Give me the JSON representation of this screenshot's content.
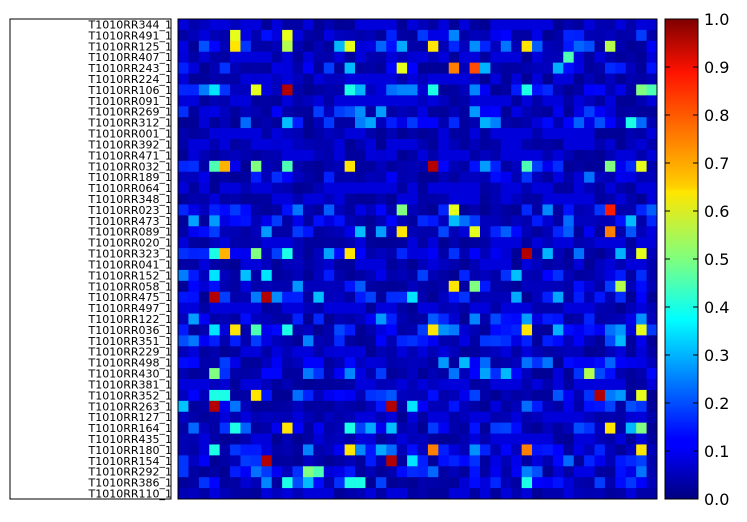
{
  "chart_data": {
    "type": "heatmap",
    "title": "",
    "xlabel": "",
    "ylabel": "",
    "colormap": "jet",
    "vmin": 0.0,
    "vmax": 1.0,
    "colorbar_ticks": [
      "0.0",
      "0.1",
      "0.2",
      "0.3",
      "0.4",
      "0.5",
      "0.6",
      "0.7",
      "0.8",
      "0.9",
      "1.0"
    ],
    "n_columns": 46,
    "rows": [
      "T1010RR344_1",
      "T1010RR491_1",
      "T1010RR125_1",
      "T1010RR407_1",
      "T1010RR243_1",
      "T1010RR224_1",
      "T1010RR106_1",
      "T1010RR091_1",
      "T1010RR269_1",
      "T1010RR312_1",
      "T1010RR001_1",
      "T1010RR392_1",
      "T1010RR471_1",
      "T1010RR032_1",
      "T1010RR189_1",
      "T1010RR064_1",
      "T1010RR348_1",
      "T1010RR023_1",
      "T1010RR473_1",
      "T1010RR089_1",
      "T1010RR020_1",
      "T1010RR323_1",
      "T1010RR041_1",
      "T1010RR152_1",
      "T1010RR058_1",
      "T1010RR475_1",
      "T1010RR497_1",
      "T1010RR122_1",
      "T1010RR036_1",
      "T1010RR351_1",
      "T1010RR229_1",
      "T1010RR498_1",
      "T1010RR430_1",
      "T1010RR381_1",
      "T1010RR352_1",
      "T1010RR263_1",
      "T1010RR127_1",
      "T1010RR164_1",
      "T1010RR435_1",
      "T1010RR180_1",
      "T1010RR154_1",
      "T1010RR292_1",
      "T1010RR386_1",
      "T1010RR110_1"
    ],
    "highlights": [
      {
        "row": 1,
        "col": 5,
        "value": 0.6
      },
      {
        "row": 1,
        "col": 10,
        "value": 0.6
      },
      {
        "row": 2,
        "col": 5,
        "value": 0.65
      },
      {
        "row": 2,
        "col": 10,
        "value": 0.55
      },
      {
        "row": 2,
        "col": 16,
        "value": 0.6
      },
      {
        "row": 2,
        "col": 24,
        "value": 0.65
      },
      {
        "row": 2,
        "col": 33,
        "value": 0.65
      },
      {
        "row": 2,
        "col": 41,
        "value": 0.55
      },
      {
        "row": 3,
        "col": 37,
        "value": 0.45
      },
      {
        "row": 4,
        "col": 21,
        "value": 0.6
      },
      {
        "row": 4,
        "col": 26,
        "value": 0.75
      },
      {
        "row": 4,
        "col": 28,
        "value": 0.8
      },
      {
        "row": 6,
        "col": 3,
        "value": 0.35
      },
      {
        "row": 6,
        "col": 7,
        "value": 0.6
      },
      {
        "row": 6,
        "col": 10,
        "value": 0.95
      },
      {
        "row": 6,
        "col": 16,
        "value": 0.4
      },
      {
        "row": 6,
        "col": 24,
        "value": 0.4
      },
      {
        "row": 6,
        "col": 33,
        "value": 0.4
      },
      {
        "row": 6,
        "col": 44,
        "value": 0.5
      },
      {
        "row": 6,
        "col": 45,
        "value": 0.45
      },
      {
        "row": 9,
        "col": 43,
        "value": 0.4
      },
      {
        "row": 13,
        "col": 3,
        "value": 0.45
      },
      {
        "row": 13,
        "col": 4,
        "value": 0.7
      },
      {
        "row": 13,
        "col": 7,
        "value": 0.5
      },
      {
        "row": 13,
        "col": 10,
        "value": 0.45
      },
      {
        "row": 13,
        "col": 16,
        "value": 0.65
      },
      {
        "row": 13,
        "col": 24,
        "value": 0.95
      },
      {
        "row": 13,
        "col": 33,
        "value": 0.45
      },
      {
        "row": 13,
        "col": 41,
        "value": 0.5
      },
      {
        "row": 13,
        "col": 44,
        "value": 0.6
      },
      {
        "row": 17,
        "col": 21,
        "value": 0.5
      },
      {
        "row": 17,
        "col": 26,
        "value": 0.6
      },
      {
        "row": 17,
        "col": 41,
        "value": 0.85
      },
      {
        "row": 19,
        "col": 21,
        "value": 0.65
      },
      {
        "row": 19,
        "col": 28,
        "value": 0.6
      },
      {
        "row": 19,
        "col": 41,
        "value": 0.75
      },
      {
        "row": 21,
        "col": 3,
        "value": 0.4
      },
      {
        "row": 21,
        "col": 4,
        "value": 0.7
      },
      {
        "row": 21,
        "col": 7,
        "value": 0.5
      },
      {
        "row": 21,
        "col": 10,
        "value": 0.4
      },
      {
        "row": 21,
        "col": 16,
        "value": 0.65
      },
      {
        "row": 21,
        "col": 33,
        "value": 0.95
      },
      {
        "row": 21,
        "col": 44,
        "value": 0.6
      },
      {
        "row": 23,
        "col": 3,
        "value": 0.35
      },
      {
        "row": 23,
        "col": 8,
        "value": 0.35
      },
      {
        "row": 24,
        "col": 26,
        "value": 0.65
      },
      {
        "row": 24,
        "col": 28,
        "value": 0.5
      },
      {
        "row": 24,
        "col": 42,
        "value": 0.55
      },
      {
        "row": 25,
        "col": 3,
        "value": 0.95
      },
      {
        "row": 25,
        "col": 8,
        "value": 0.95
      },
      {
        "row": 25,
        "col": 22,
        "value": 0.35
      },
      {
        "row": 28,
        "col": 3,
        "value": 0.35
      },
      {
        "row": 28,
        "col": 5,
        "value": 0.65
      },
      {
        "row": 28,
        "col": 7,
        "value": 0.45
      },
      {
        "row": 28,
        "col": 10,
        "value": 0.4
      },
      {
        "row": 28,
        "col": 24,
        "value": 0.65
      },
      {
        "row": 28,
        "col": 33,
        "value": 0.65
      },
      {
        "row": 28,
        "col": 44,
        "value": 0.6
      },
      {
        "row": 32,
        "col": 3,
        "value": 0.5
      },
      {
        "row": 32,
        "col": 39,
        "value": 0.55
      },
      {
        "row": 34,
        "col": 3,
        "value": 0.4
      },
      {
        "row": 34,
        "col": 4,
        "value": 0.4
      },
      {
        "row": 34,
        "col": 7,
        "value": 0.65
      },
      {
        "row": 34,
        "col": 40,
        "value": 0.95
      },
      {
        "row": 34,
        "col": 44,
        "value": 0.6
      },
      {
        "row": 35,
        "col": 3,
        "value": 0.95
      },
      {
        "row": 35,
        "col": 20,
        "value": 0.95
      },
      {
        "row": 35,
        "col": 22,
        "value": 0.35
      },
      {
        "row": 37,
        "col": 5,
        "value": 0.4
      },
      {
        "row": 37,
        "col": 10,
        "value": 0.65
      },
      {
        "row": 37,
        "col": 16,
        "value": 0.4
      },
      {
        "row": 37,
        "col": 41,
        "value": 0.65
      },
      {
        "row": 37,
        "col": 44,
        "value": 0.5
      },
      {
        "row": 39,
        "col": 3,
        "value": 0.4
      },
      {
        "row": 39,
        "col": 16,
        "value": 0.65
      },
      {
        "row": 39,
        "col": 24,
        "value": 0.75
      },
      {
        "row": 39,
        "col": 33,
        "value": 0.75
      },
      {
        "row": 39,
        "col": 44,
        "value": 0.65
      },
      {
        "row": 40,
        "col": 8,
        "value": 0.95
      },
      {
        "row": 40,
        "col": 20,
        "value": 0.95
      },
      {
        "row": 40,
        "col": 22,
        "value": 0.35
      },
      {
        "row": 41,
        "col": 12,
        "value": 0.5
      },
      {
        "row": 41,
        "col": 13,
        "value": 0.45
      },
      {
        "row": 42,
        "col": 10,
        "value": 0.4
      },
      {
        "row": 42,
        "col": 16,
        "value": 0.4
      },
      {
        "row": 42,
        "col": 17,
        "value": 0.4
      },
      {
        "row": 42,
        "col": 33,
        "value": 0.4
      }
    ]
  }
}
